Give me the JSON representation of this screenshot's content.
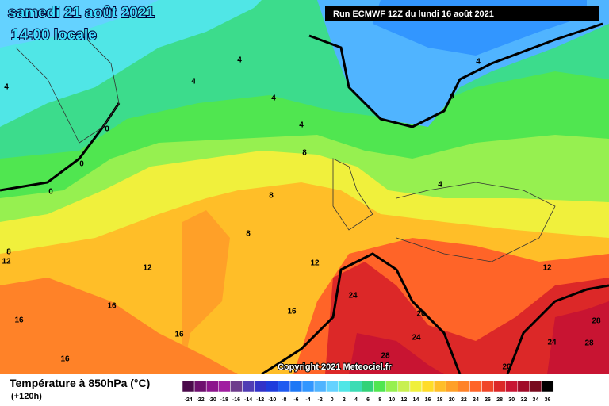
{
  "header": {
    "date": "samedi 21 août 2021",
    "time": "14:00 locale",
    "run": "Run ECMWF 12Z du lundi 16 août 2021"
  },
  "copyright": "Copyright 2021 Meteociel.fr",
  "footer": {
    "title": "Température à 850hPa (°C)",
    "lead": "(+120h)"
  },
  "legend": {
    "ticks": [
      -24,
      -22,
      -20,
      -18,
      -16,
      -14,
      -12,
      -10,
      -8,
      -6,
      -4,
      -2,
      0,
      2,
      4,
      6,
      8,
      10,
      12,
      14,
      16,
      18,
      20,
      22,
      24,
      26,
      28,
      30,
      32,
      34,
      36
    ],
    "colors": [
      "#4b0a4b",
      "#6e0f6e",
      "#8c148c",
      "#a01ea0",
      "#6e3c8c",
      "#503cb4",
      "#3232c8",
      "#1e3cdc",
      "#1e5af0",
      "#1e78f5",
      "#3296ff",
      "#50b4ff",
      "#64d2ff",
      "#50e6e6",
      "#3cdcb4",
      "#32d278",
      "#50e650",
      "#96f050",
      "#c8f050",
      "#f0f03c",
      "#ffdc28",
      "#ffbe28",
      "#ffa028",
      "#ff8228",
      "#ff6428",
      "#f04628",
      "#dc2828",
      "#c81432",
      "#a00a28",
      "#780a1e",
      "#000000"
    ]
  },
  "contour_labels": [
    4,
    4,
    4,
    4,
    4,
    4,
    0,
    0,
    0,
    0,
    8,
    8,
    8,
    4,
    8,
    12,
    12,
    12,
    12,
    16,
    16,
    16,
    16,
    16,
    24,
    20,
    24,
    28,
    20,
    24,
    28,
    28
  ]
}
